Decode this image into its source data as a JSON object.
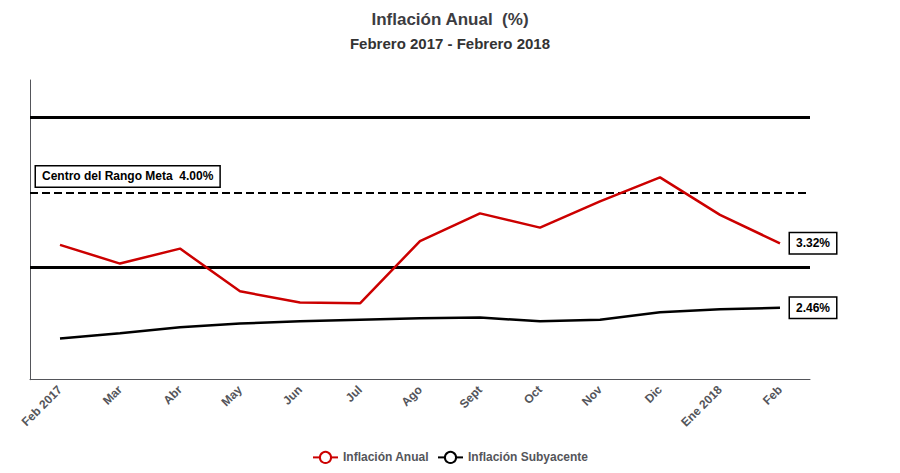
{
  "chart_data": {
    "type": "line",
    "title": "Inflación Anual  (%)",
    "subtitle": "Febrero 2017 - Febrero 2018",
    "categories": [
      "Feb 2017",
      "Mar",
      "Abr",
      "May",
      "Jun",
      "Jul",
      "Ago",
      "Sept",
      "Oct",
      "Nov",
      "Dic",
      "Ene 2018",
      "Feb"
    ],
    "series": [
      {
        "name": "Inflación Anual",
        "color": "#CC0000",
        "values": [
          3.3,
          3.05,
          3.25,
          2.68,
          2.53,
          2.52,
          3.35,
          3.72,
          3.53,
          3.88,
          4.2,
          3.7,
          3.32
        ],
        "end_label": "3.32%"
      },
      {
        "name": "Inflación Subyacente",
        "color": "#000000",
        "values": [
          2.05,
          2.12,
          2.2,
          2.25,
          2.28,
          2.3,
          2.32,
          2.33,
          2.28,
          2.3,
          2.4,
          2.44,
          2.46
        ],
        "end_label": "2.46%"
      }
    ],
    "reference_lines": [
      {
        "value": 5.0,
        "line_style": "solid",
        "color": "#000000"
      },
      {
        "value": 3.0,
        "line_style": "solid",
        "color": "#000000"
      },
      {
        "value": 4.0,
        "line_style": "dashed",
        "color": "#000000",
        "label": "Centro del Rango Meta  4.00%"
      }
    ],
    "ylim": [
      1.5,
      5.5
    ],
    "tick_labels": "x",
    "grid": false,
    "legend": "bottom"
  }
}
